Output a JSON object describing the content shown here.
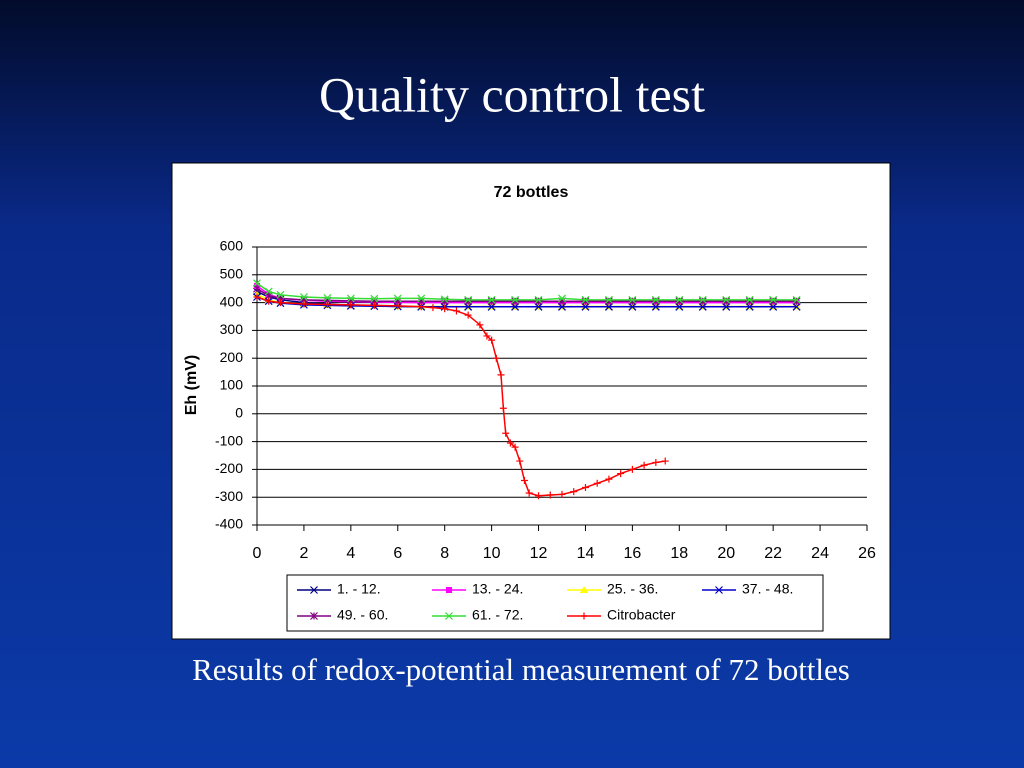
{
  "slide_title": "Quality control test",
  "caption": "Results of redox-potential measurement of 72 bottles",
  "chart_data": {
    "type": "line",
    "title": "72 bottles",
    "y_label": "Eh (mV)",
    "xlim": [
      0,
      26
    ],
    "xticks": [
      0,
      2,
      4,
      6,
      8,
      10,
      12,
      14,
      16,
      18,
      20,
      22,
      24,
      26
    ],
    "ylim": [
      -400,
      600
    ],
    "yticks": [
      -400,
      -300,
      -200,
      -100,
      0,
      100,
      200,
      300,
      400,
      500,
      600
    ],
    "grid": true,
    "legend": "bottom",
    "series": [
      {
        "name": "1. - 12.",
        "color": "#000080",
        "marker": "x",
        "x": [
          0,
          0.5,
          1,
          2,
          3,
          4,
          5,
          6,
          7,
          8,
          9,
          10,
          11,
          12,
          13,
          14,
          15,
          16,
          17,
          18,
          19,
          20,
          21,
          22,
          23
        ],
        "values": [
          440,
          420,
          410,
          400,
          395,
          390,
          388,
          386,
          385,
          385,
          385,
          385,
          385,
          385,
          385,
          385,
          385,
          385,
          385,
          385,
          385,
          385,
          385,
          385,
          385
        ]
      },
      {
        "name": "13. - 24.",
        "color": "#ff00ff",
        "marker": "square",
        "x": [
          0,
          0.5,
          1,
          2,
          3,
          4,
          5,
          6,
          7,
          8,
          9,
          10,
          11,
          12,
          13,
          14,
          15,
          16,
          17,
          18,
          19,
          20,
          21,
          22,
          23
        ],
        "values": [
          460,
          430,
          415,
          408,
          405,
          403,
          402,
          401,
          400,
          400,
          400,
          400,
          400,
          400,
          400,
          400,
          400,
          400,
          400,
          400,
          400,
          400,
          400,
          400,
          400
        ]
      },
      {
        "name": "25. - 36.",
        "color": "#ffff00",
        "marker": "triangle",
        "x": [
          0,
          0.5,
          1,
          2,
          3,
          4,
          5,
          6,
          7,
          8,
          9,
          10,
          11,
          12,
          13,
          14,
          15,
          16,
          17,
          18,
          19,
          20,
          21,
          22,
          23
        ],
        "values": [
          430,
          410,
          400,
          395,
          392,
          390,
          388,
          387,
          386,
          386,
          386,
          386,
          385,
          385,
          386,
          386,
          386,
          386,
          386,
          386,
          386,
          386,
          386,
          386,
          386
        ]
      },
      {
        "name": "37. - 48.",
        "color": "#0000cc",
        "marker": "x",
        "x": [
          0,
          0.5,
          1,
          2,
          3,
          4,
          5,
          6,
          7,
          8,
          9,
          10,
          11,
          12,
          13,
          14,
          15,
          16,
          17,
          18,
          19,
          20,
          21,
          22,
          23
        ],
        "values": [
          420,
          405,
          398,
          392,
          390,
          388,
          387,
          386,
          385,
          385,
          385,
          385,
          385,
          385,
          385,
          385,
          385,
          385,
          385,
          385,
          385,
          385,
          385,
          385,
          385
        ]
      },
      {
        "name": "49. - 60.",
        "color": "#800080",
        "marker": "star",
        "x": [
          0,
          0.5,
          1,
          2,
          3,
          4,
          5,
          6,
          7,
          8,
          9,
          10,
          11,
          12,
          13,
          14,
          15,
          16,
          17,
          18,
          19,
          20,
          21,
          22,
          23
        ],
        "values": [
          450,
          425,
          415,
          410,
          408,
          406,
          405,
          405,
          405,
          405,
          405,
          405,
          405,
          405,
          405,
          405,
          405,
          405,
          405,
          405,
          405,
          405,
          405,
          405,
          405
        ]
      },
      {
        "name": "61. - 72.",
        "color": "#33dd33",
        "marker": "x",
        "x": [
          0,
          0.5,
          1,
          2,
          3,
          4,
          5,
          6,
          7,
          8,
          9,
          10,
          11,
          12,
          13,
          14,
          15,
          16,
          17,
          18,
          19,
          20,
          21,
          22,
          23
        ],
        "values": [
          470,
          440,
          428,
          420,
          417,
          415,
          414,
          415,
          415,
          412,
          410,
          410,
          410,
          410,
          415,
          410,
          410,
          410,
          410,
          410,
          410,
          410,
          410,
          410,
          410
        ]
      },
      {
        "name": "Citrobacter",
        "color": "#ff0000",
        "marker": "plus",
        "x": [
          0,
          0.5,
          1,
          2,
          3,
          4,
          5,
          6,
          7,
          7.5,
          8,
          8.5,
          9,
          9.5,
          9.8,
          10,
          10.2,
          10.4,
          10.5,
          10.6,
          10.8,
          11,
          11.2,
          11.4,
          11.6,
          12,
          12.5,
          13,
          13.5,
          14,
          14.5,
          15,
          15.5,
          16,
          16.5,
          17,
          17.4
        ],
        "values": [
          420,
          405,
          400,
          395,
          393,
          392,
          390,
          388,
          385,
          382,
          378,
          370,
          355,
          320,
          280,
          265,
          200,
          140,
          20,
          -70,
          -105,
          -120,
          -170,
          -240,
          -285,
          -295,
          -292,
          -290,
          -280,
          -265,
          -250,
          -235,
          -215,
          -200,
          -185,
          -175,
          -170
        ]
      }
    ]
  }
}
